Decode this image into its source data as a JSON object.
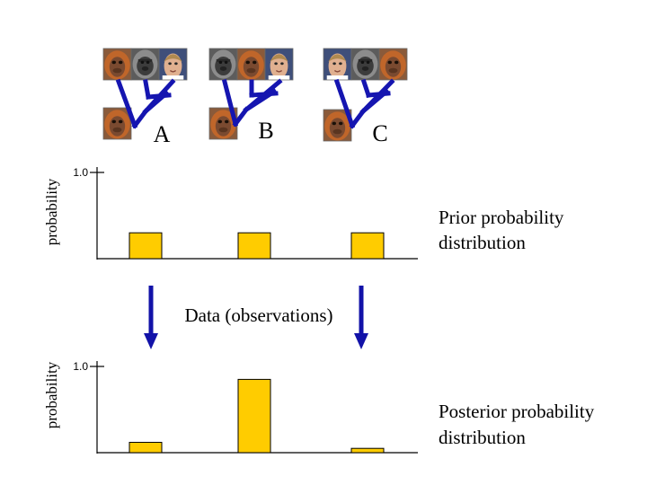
{
  "trees": [
    {
      "label": "A",
      "leaves": [
        "orangutan",
        "gorilla",
        "human"
      ],
      "outgroup": "orangutan"
    },
    {
      "label": "B",
      "leaves": [
        "gorilla",
        "orangutan",
        "human"
      ],
      "outgroup": "orangutan"
    },
    {
      "label": "C",
      "leaves": [
        "human",
        "gorilla",
        "orangutan"
      ],
      "outgroup": "orangutan"
    }
  ],
  "prior": {
    "ylabel": "probability",
    "ytick": "1.0",
    "caption_line1": "Prior probability",
    "caption_line2": "distribution"
  },
  "middle": {
    "label": "Data (observations)"
  },
  "posterior": {
    "ylabel": "probability",
    "ytick": "1.0",
    "caption_line1": "Posterior probability",
    "caption_line2": "distribution"
  },
  "chart_data": [
    {
      "type": "bar",
      "categories": [
        "A",
        "B",
        "C"
      ],
      "values": [
        0.3,
        0.3,
        0.3
      ],
      "ylabel": "probability",
      "ylim": [
        0,
        1.0
      ]
    },
    {
      "type": "bar",
      "categories": [
        "A",
        "B",
        "C"
      ],
      "values": [
        0.12,
        0.85,
        0.05
      ],
      "ylabel": "probability",
      "ylim": [
        0,
        1.0
      ]
    }
  ],
  "colors": {
    "bar_fill": "#FFCC00",
    "bar_stroke": "#000000",
    "tree_blue": "#1515B0",
    "arrow_blue": "#1212A8",
    "axis": "#000000"
  }
}
